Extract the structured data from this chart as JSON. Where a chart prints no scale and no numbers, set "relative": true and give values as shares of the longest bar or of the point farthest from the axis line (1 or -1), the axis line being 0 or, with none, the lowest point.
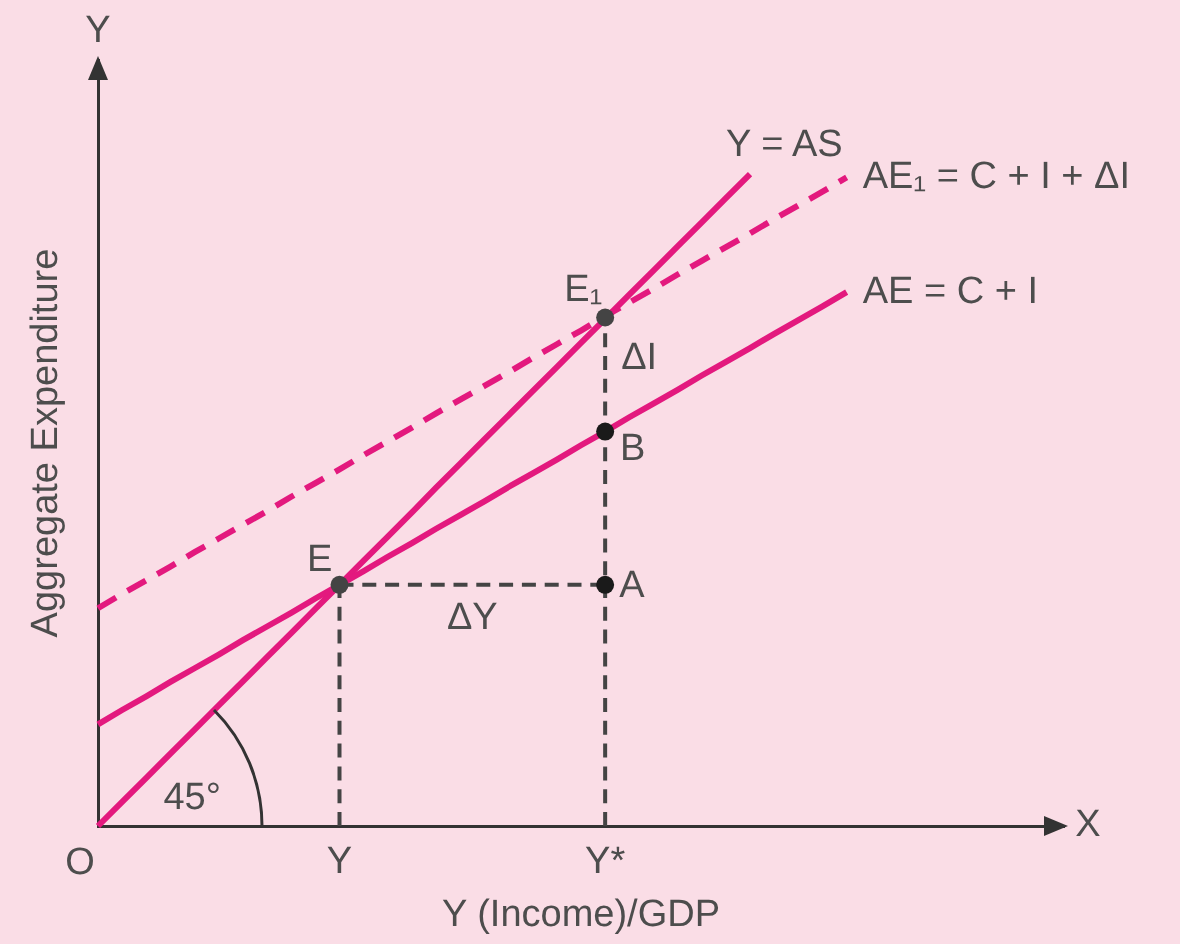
{
  "chart_data": {
    "type": "line",
    "xlabel": "Y (Income)/GDP",
    "ylabel": "Aggregate Expenditure",
    "relative": true,
    "legend": false,
    "categories": [
      null,
      null,
      null,
      null,
      null,
      null,
      null,
      null,
      null,
      null,
      "Y",
      null,
      null,
      null,
      null,
      null,
      null,
      null,
      null,
      null,
      null,
      "Y*",
      null,
      null,
      null,
      null,
      null,
      null,
      null,
      null,
      null,
      null,
      null,
      null,
      null,
      null,
      null,
      null,
      null,
      null,
      null
    ],
    "series": [
      {
        "type": "lollipop",
        "color": "#444444",
        "line_style": "dashed",
        "marker": "circle",
        "x": [
          "Y",
          "Y*"
        ],
        "values": [
          0.37,
          0.78
        ]
      },
      {
        "color": "#444444",
        "line_style": "dashed",
        "x": [
          "Y",
          "Y*"
        ],
        "values": [
          0.37,
          0.37
        ]
      },
      {
        "name": "Y = AS",
        "color": "#e3197e",
        "line_style": "solid",
        "values": [
          0,
          0.037,
          0.074,
          0.111,
          0.148,
          0.185,
          0.222,
          0.259,
          0.296,
          0.333,
          0.37,
          0.407,
          0.444,
          0.481,
          0.519,
          0.556,
          0.593,
          0.63,
          0.667,
          0.704,
          0.741,
          0.778,
          0.815,
          0.852,
          0.889,
          0.926,
          0.963,
          1,
          null,
          null,
          null,
          null,
          null,
          null,
          null,
          null,
          null,
          null,
          null,
          null,
          null
        ]
      },
      {
        "name": "AE₁ = C + I + ΔI",
        "color": "#e3197e",
        "line_style": "dashed",
        "values": [
          0.334,
          0.356,
          0.377,
          0.398,
          0.42,
          0.441,
          0.462,
          0.483,
          0.505,
          0.526,
          0.547,
          0.569,
          0.59,
          0.611,
          0.633,
          0.654,
          0.675,
          0.696,
          0.718,
          0.739,
          0.76,
          0.782,
          0.803,
          0.824,
          0.846,
          0.867,
          0.888,
          0.909,
          0.931,
          0.952,
          0.973,
          0.995,
          null,
          null,
          null,
          null,
          null,
          null,
          null,
          null,
          null
        ]
      },
      {
        "name": "AE = C + I",
        "color": "#e3197e",
        "line_style": "solid",
        "values": [
          0.156,
          0.178,
          0.199,
          0.221,
          0.242,
          0.263,
          0.285,
          0.306,
          0.327,
          0.349,
          0.37,
          0.391,
          0.413,
          0.434,
          0.456,
          0.477,
          0.498,
          0.52,
          0.541,
          0.562,
          0.584,
          0.605,
          0.627,
          0.648,
          0.669,
          0.691,
          0.712,
          0.733,
          0.755,
          0.776,
          0.797,
          0.819,
          null,
          null,
          null,
          null,
          null,
          null,
          null,
          null,
          null
        ]
      },
      {
        "type": "scatter",
        "color": "#1a1a1a",
        "marker": "circle",
        "x": [
          "Y*",
          "Y*"
        ],
        "values": [
          0.605,
          0.37
        ]
      }
    ],
    "annotations": [
      "X",
      "Y",
      "45°",
      "O",
      "ΔY",
      "ΔI",
      {
        "text": "E",
        "x": "Y",
        "y": 0.37
      },
      {
        "text": "E₁",
        "x": "Y*",
        "y": 0.78
      },
      {
        "text": "B",
        "x": "Y*",
        "y": 0.605
      },
      {
        "text": "A",
        "x": "Y*",
        "y": 0.37
      }
    ]
  }
}
